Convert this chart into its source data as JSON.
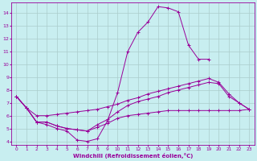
{
  "xlabel": "Windchill (Refroidissement éolien,°C)",
  "background_color": "#c8eef0",
  "line_color": "#990099",
  "grid_color": "#aacccc",
  "xlim": [
    -0.5,
    23.5
  ],
  "ylim": [
    3.7,
    14.8
  ],
  "xticks": [
    0,
    1,
    2,
    3,
    4,
    5,
    6,
    7,
    8,
    9,
    10,
    11,
    12,
    13,
    14,
    15,
    16,
    17,
    18,
    19,
    20,
    21,
    22,
    23
  ],
  "yticks": [
    4,
    5,
    6,
    7,
    8,
    9,
    10,
    11,
    12,
    13,
    14
  ],
  "curve1_x": [
    0,
    1,
    2,
    3,
    4,
    5,
    6,
    7,
    8,
    9,
    10,
    11,
    12,
    13,
    14,
    15,
    16,
    17,
    18,
    19
  ],
  "curve1_y": [
    7.5,
    6.6,
    5.5,
    5.3,
    5.0,
    4.8,
    4.1,
    4.0,
    4.2,
    5.6,
    7.8,
    11.0,
    12.5,
    13.3,
    14.5,
    14.4,
    14.1,
    11.5,
    10.4,
    10.4
  ],
  "curve2_x": [
    0,
    1,
    2,
    3,
    4,
    5,
    6,
    7,
    8,
    9,
    10,
    11,
    12,
    13,
    14,
    15,
    16,
    17,
    18,
    19,
    20,
    21,
    22,
    23
  ],
  "curve2_y": [
    7.5,
    6.6,
    5.5,
    5.5,
    5.2,
    5.0,
    4.9,
    4.8,
    5.1,
    5.4,
    5.8,
    6.0,
    6.1,
    6.2,
    6.3,
    6.4,
    6.4,
    6.4,
    6.4,
    6.4,
    6.4,
    6.4,
    6.4,
    6.5
  ],
  "curve3_x": [
    0,
    1,
    2,
    3,
    4,
    5,
    6,
    7,
    8,
    9,
    10,
    11,
    12,
    13,
    14,
    15,
    16,
    17,
    18,
    19,
    20,
    21,
    22,
    23
  ],
  "curve3_y": [
    7.5,
    6.6,
    5.5,
    5.5,
    5.2,
    5.0,
    4.9,
    4.8,
    5.3,
    5.7,
    6.3,
    6.8,
    7.1,
    7.3,
    7.5,
    7.8,
    8.0,
    8.2,
    8.4,
    8.6,
    8.5,
    7.5,
    7.0,
    6.5
  ],
  "curve4_x": [
    0,
    1,
    2,
    3,
    4,
    5,
    6,
    7,
    8,
    9,
    10,
    11,
    12,
    13,
    14,
    15,
    16,
    17,
    18,
    19,
    20,
    21,
    22,
    23
  ],
  "curve4_y": [
    7.5,
    6.6,
    6.0,
    6.0,
    6.1,
    6.2,
    6.3,
    6.4,
    6.5,
    6.7,
    6.9,
    7.2,
    7.4,
    7.7,
    7.9,
    8.1,
    8.3,
    8.5,
    8.7,
    8.9,
    8.6,
    7.7,
    7.0,
    6.5
  ]
}
